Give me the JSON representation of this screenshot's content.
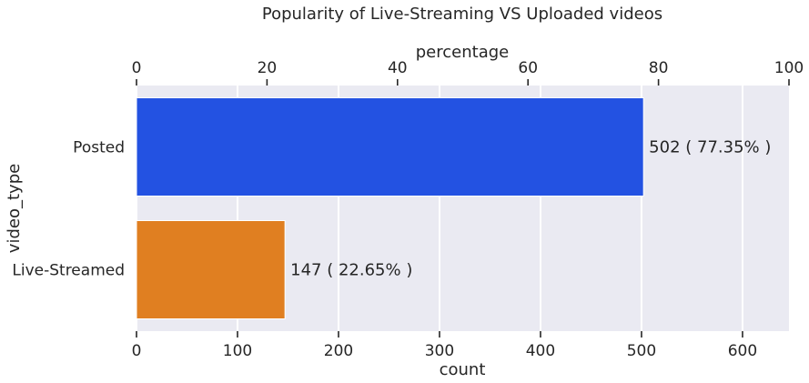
{
  "chart_data": {
    "type": "bar",
    "orientation": "horizontal",
    "title": "Popularity of Live-Streaming VS Uploaded videos",
    "xlabel": "count",
    "ylabel": "video_type",
    "secondary_xlabel": "percentage",
    "categories": [
      "Posted",
      "Live-Streamed"
    ],
    "values": [
      502,
      147
    ],
    "bar_labels": [
      "502 ( 77.35% )",
      "147 ( 22.65% )"
    ],
    "colors": [
      "#2352e2",
      "#e07f21"
    ],
    "xlim": [
      0,
      646
    ],
    "x_ticks": [
      "0",
      "100",
      "200",
      "300",
      "400",
      "500",
      "600"
    ],
    "secondary_xlim": [
      0,
      100
    ],
    "secondary_x_ticks": [
      "0",
      "20",
      "40",
      "60",
      "80",
      "100"
    ],
    "grid": true,
    "plot_background": "#eaeaf2"
  }
}
